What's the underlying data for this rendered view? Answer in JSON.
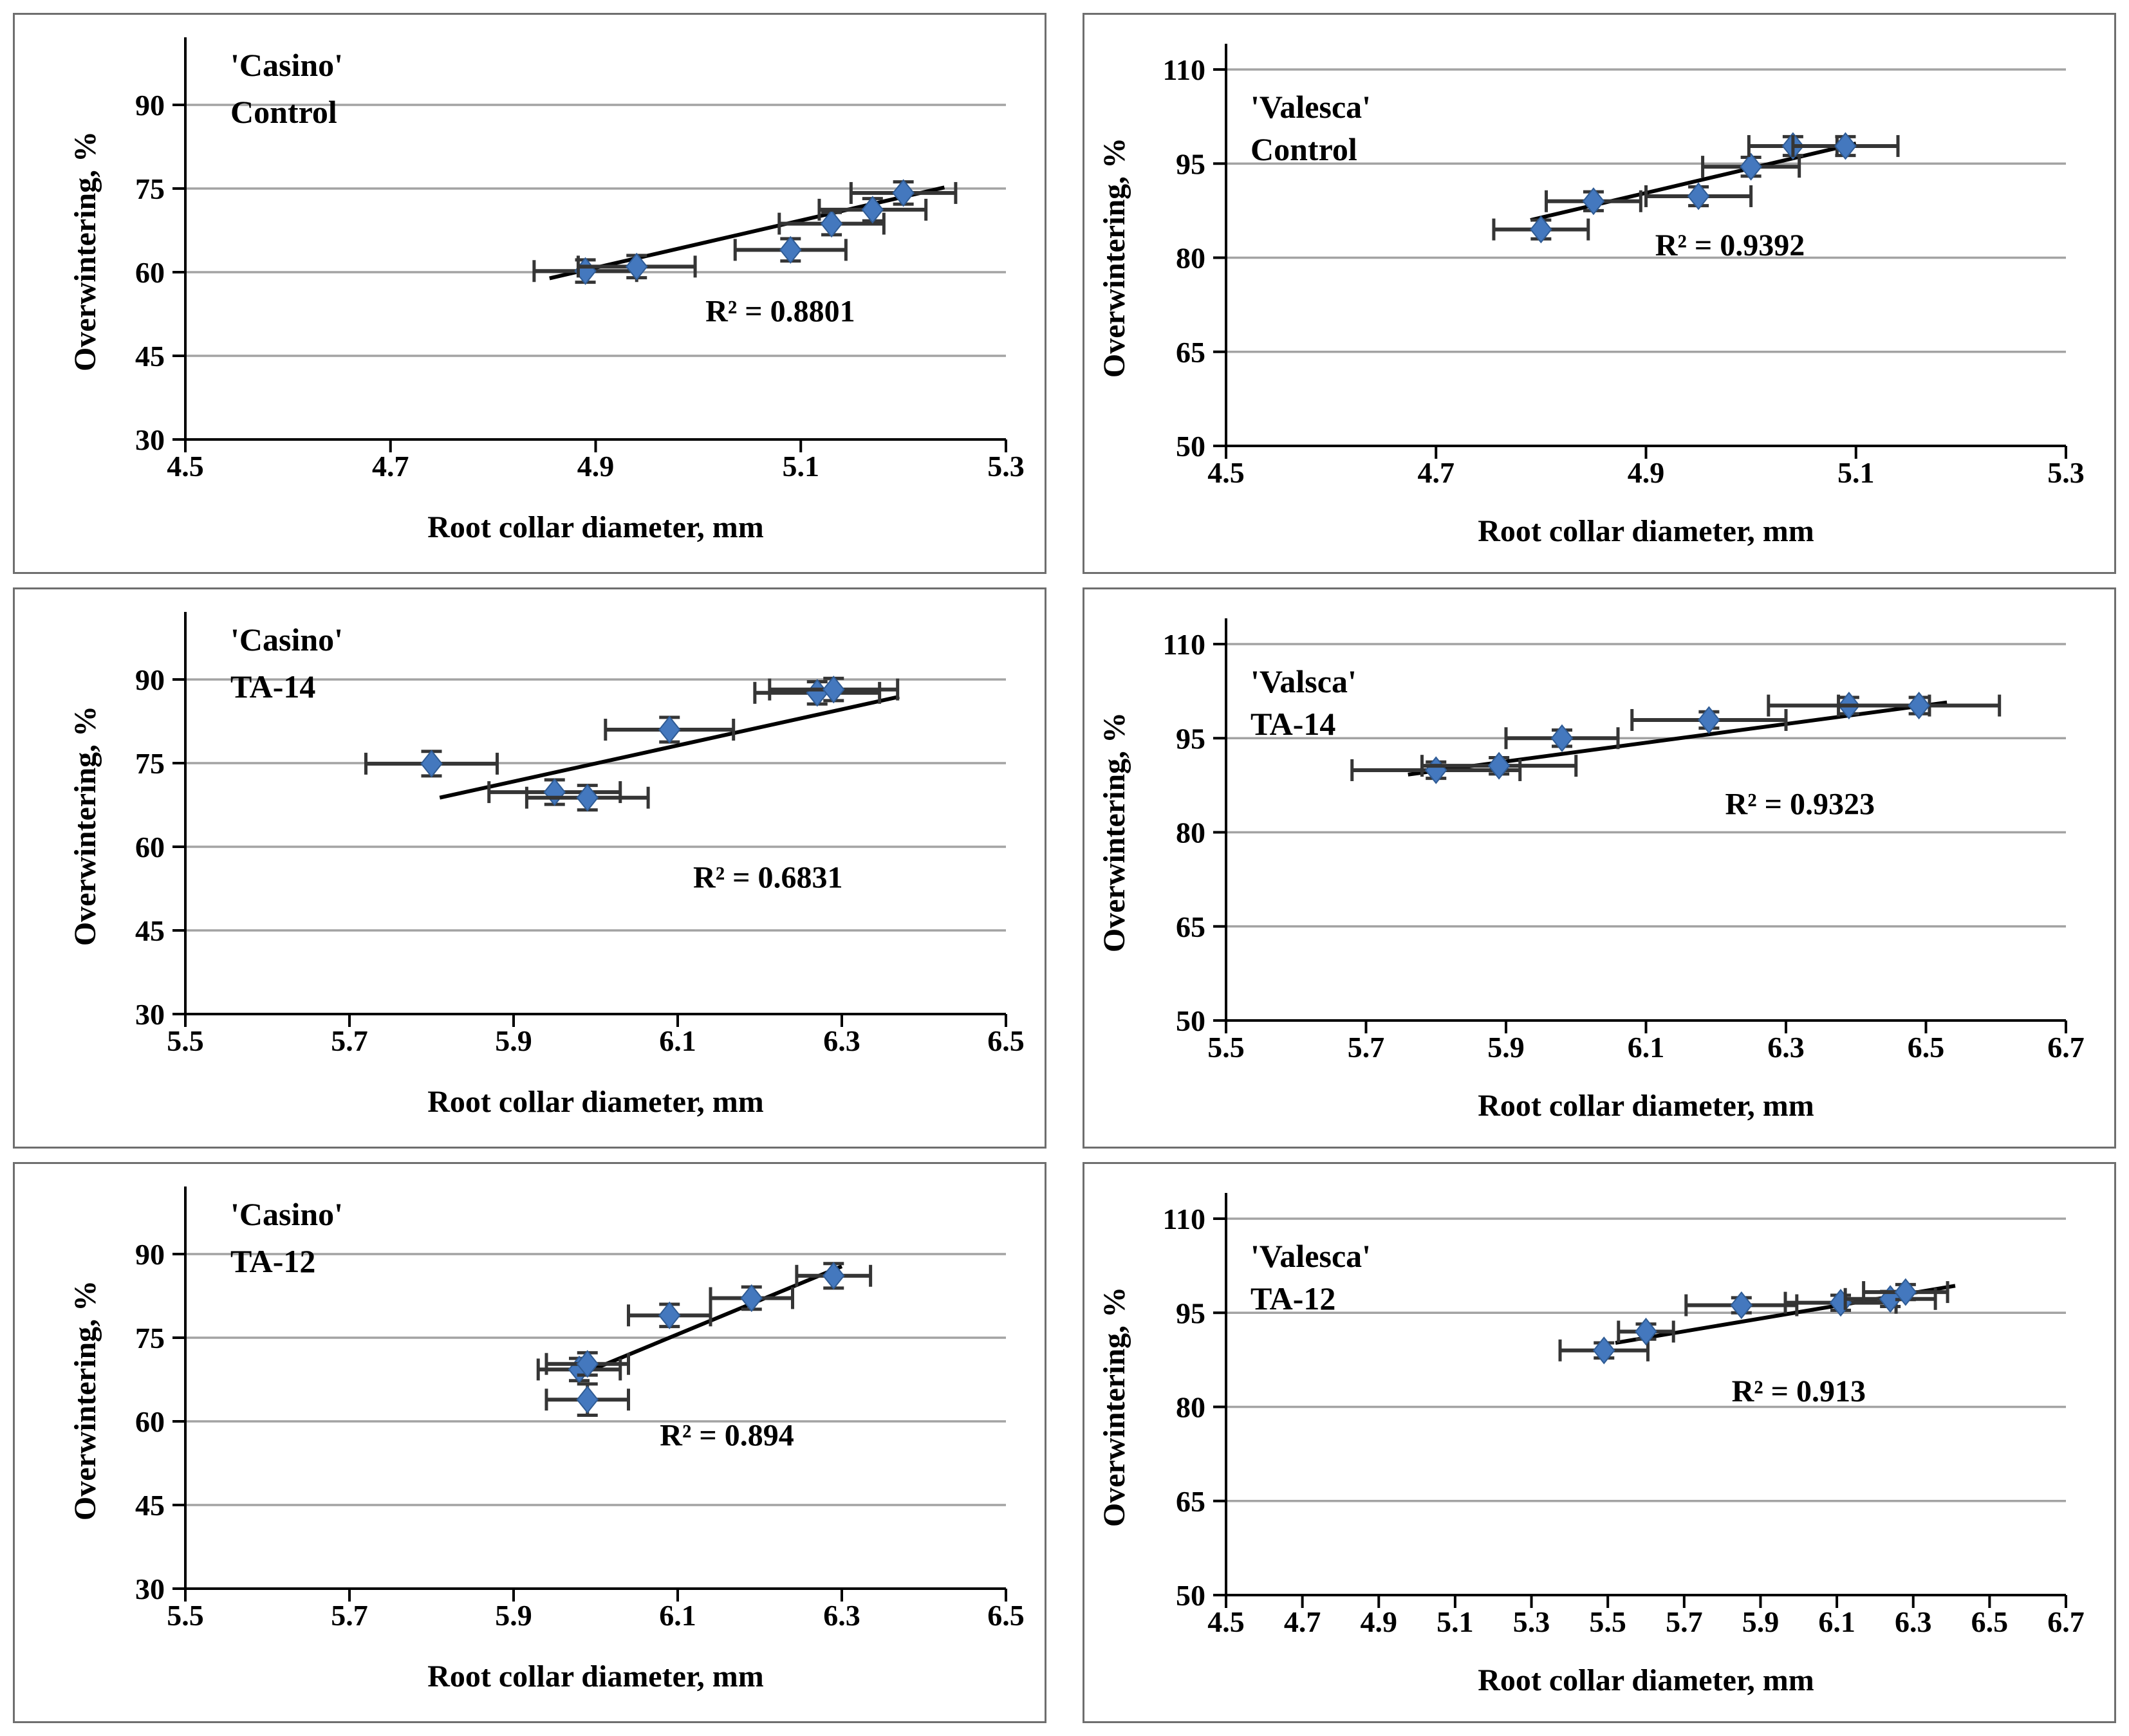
{
  "figure": {
    "description": "Six-panel scatter figure: overwintering percentage vs root collar diameter for two cultivars under three treatments",
    "xlabel": "Root collar diameter, mm",
    "ylabel": "Overwintering, %"
  },
  "colors": {
    "background": "#ffffff",
    "panel_border": "#6e6e6e",
    "grid": "#a3a3a3",
    "axis": "#000000",
    "error_bar": "#353535",
    "trend": "#000000",
    "marker_fill": "#4478be",
    "marker_edge": "#2f5b94",
    "text": "#000000"
  },
  "chart_data": [
    {
      "type": "scatter",
      "title_lines": [
        "'Casino'",
        "Control"
      ],
      "r2_label": "R² = 0.8801",
      "r2_pos": [
        5.08,
        53.0
      ],
      "xlabel": "Root collar diameter, mm",
      "ylabel": "Overwintering, %",
      "xlim": [
        4.5,
        5.3
      ],
      "ylim": [
        30,
        97.5
      ],
      "x_ticks": [
        4.5,
        4.7,
        4.9,
        5.1,
        5.3
      ],
      "y_ticks": [
        30,
        45,
        60,
        75,
        90
      ],
      "gridlines": [
        45,
        60,
        75,
        90
      ],
      "points": [
        {
          "x": 4.89,
          "y": 60.2,
          "xerr": 0.05,
          "yerr": 2.0
        },
        {
          "x": 4.94,
          "y": 61.0,
          "xerr": 0.057,
          "yerr": 2.0
        },
        {
          "x": 5.09,
          "y": 64.0,
          "xerr": 0.054,
          "yerr": 2.0
        },
        {
          "x": 5.13,
          "y": 68.7,
          "xerr": 0.051,
          "yerr": 2.0
        },
        {
          "x": 5.17,
          "y": 71.2,
          "xerr": 0.052,
          "yerr": 2.0
        },
        {
          "x": 5.2,
          "y": 74.2,
          "xerr": 0.051,
          "yerr": 2.0
        }
      ],
      "trendline": {
        "x1": 4.855,
        "y1": 58.9,
        "x2": 5.24,
        "y2": 75.2
      }
    },
    {
      "type": "scatter",
      "title_lines": [
        "'Valesca'",
        "Control"
      ],
      "r2_label": "R² = 0.9392",
      "r2_pos": [
        4.98,
        82.0
      ],
      "xlabel": "Root collar diameter, mm",
      "ylabel": "Overwintering, %",
      "xlim": [
        4.5,
        5.3
      ],
      "ylim": [
        50,
        110
      ],
      "x_ticks": [
        4.5,
        4.7,
        4.9,
        5.1,
        5.3
      ],
      "y_ticks": [
        50,
        65,
        80,
        95,
        110
      ],
      "gridlines": [
        65,
        80,
        95,
        110
      ],
      "points": [
        {
          "x": 4.8,
          "y": 84.5,
          "xerr": 0.045,
          "yerr": 1.5
        },
        {
          "x": 4.85,
          "y": 89.0,
          "xerr": 0.045,
          "yerr": 1.5
        },
        {
          "x": 4.95,
          "y": 89.8,
          "xerr": 0.05,
          "yerr": 1.5
        },
        {
          "x": 5.0,
          "y": 94.5,
          "xerr": 0.046,
          "yerr": 1.5
        },
        {
          "x": 5.04,
          "y": 97.8,
          "xerr": 0.042,
          "yerr": 1.5
        },
        {
          "x": 5.09,
          "y": 97.8,
          "xerr": 0.05,
          "yerr": 1.5
        }
      ],
      "trendline": {
        "x1": 4.79,
        "y1": 86.0,
        "x2": 5.1,
        "y2": 98.2
      }
    },
    {
      "type": "scatter",
      "title_lines": [
        "'Casino'",
        "TA-14"
      ],
      "r2_label": "R² = 0.6831",
      "r2_pos": [
        6.21,
        54.5
      ],
      "xlabel": "Root collar diameter, mm",
      "ylabel": "Overwintering, %",
      "xlim": [
        5.5,
        6.5
      ],
      "ylim": [
        30,
        97.5
      ],
      "x_ticks": [
        5.5,
        5.7,
        5.9,
        6.1,
        6.3,
        6.5
      ],
      "y_ticks": [
        30,
        45,
        60,
        75,
        90
      ],
      "gridlines": [
        45,
        60,
        75,
        90
      ],
      "points": [
        {
          "x": 5.8,
          "y": 74.9,
          "xerr": 0.08,
          "yerr": 2.2
        },
        {
          "x": 5.95,
          "y": 69.8,
          "xerr": 0.08,
          "yerr": 2.2
        },
        {
          "x": 5.99,
          "y": 68.8,
          "xerr": 0.074,
          "yerr": 2.2
        },
        {
          "x": 6.09,
          "y": 81.0,
          "xerr": 0.078,
          "yerr": 2.2
        },
        {
          "x": 6.27,
          "y": 87.6,
          "xerr": 0.076,
          "yerr": 2.0
        },
        {
          "x": 6.29,
          "y": 88.2,
          "xerr": 0.078,
          "yerr": 2.0
        }
      ],
      "trendline": {
        "x1": 5.81,
        "y1": 68.8,
        "x2": 6.37,
        "y2": 86.9
      }
    },
    {
      "type": "scatter",
      "title_lines": [
        "'Valsca'",
        "TA-14"
      ],
      "r2_label": "R² = 0.9323",
      "r2_pos": [
        6.32,
        84.5
      ],
      "xlabel": "Root collar diameter, mm",
      "ylabel": "Overwintering, %",
      "xlim": [
        5.5,
        6.7
      ],
      "ylim": [
        50,
        110
      ],
      "x_ticks": [
        5.5,
        5.7,
        5.9,
        6.1,
        6.3,
        6.5,
        6.7
      ],
      "y_ticks": [
        50,
        65,
        80,
        95,
        110
      ],
      "gridlines": [
        65,
        80,
        95,
        110
      ],
      "points": [
        {
          "x": 5.8,
          "y": 89.9,
          "xerr": 0.12,
          "yerr": 1.3
        },
        {
          "x": 5.89,
          "y": 90.6,
          "xerr": 0.11,
          "yerr": 1.3
        },
        {
          "x": 5.98,
          "y": 95.0,
          "xerr": 0.08,
          "yerr": 1.3
        },
        {
          "x": 6.19,
          "y": 97.9,
          "xerr": 0.11,
          "yerr": 1.3
        },
        {
          "x": 6.39,
          "y": 100.2,
          "xerr": 0.115,
          "yerr": 1.3
        },
        {
          "x": 6.49,
          "y": 100.2,
          "xerr": 0.115,
          "yerr": 1.3
        }
      ],
      "trendline": {
        "x1": 5.76,
        "y1": 89.2,
        "x2": 6.53,
        "y2": 100.7
      }
    },
    {
      "type": "scatter",
      "title_lines": [
        "'Casino'",
        "TA-12"
      ],
      "r2_label": "R² = 0.894",
      "r2_pos": [
        6.16,
        57.5
      ],
      "xlabel": "Root collar diameter, mm",
      "ylabel": "Overwintering, %",
      "xlim": [
        5.5,
        6.5
      ],
      "ylim": [
        30,
        97.5
      ],
      "x_ticks": [
        5.5,
        5.7,
        5.9,
        6.1,
        6.3,
        6.5
      ],
      "y_ticks": [
        30,
        45,
        60,
        75,
        90
      ],
      "gridlines": [
        45,
        60,
        75,
        90
      ],
      "points": [
        {
          "x": 5.98,
          "y": 69.3,
          "xerr": 0.05,
          "yerr": 2.0
        },
        {
          "x": 5.99,
          "y": 70.3,
          "xerr": 0.05,
          "yerr": 2.0
        },
        {
          "x": 5.99,
          "y": 63.9,
          "xerr": 0.05,
          "yerr": 2.8
        },
        {
          "x": 6.09,
          "y": 79.0,
          "xerr": 0.05,
          "yerr": 2.0
        },
        {
          "x": 6.19,
          "y": 82.1,
          "xerr": 0.05,
          "yerr": 2.0
        },
        {
          "x": 6.29,
          "y": 86.1,
          "xerr": 0.045,
          "yerr": 2.2
        }
      ],
      "trendline": {
        "x1": 5.975,
        "y1": 68.0,
        "x2": 6.3,
        "y2": 87.8
      }
    },
    {
      "type": "scatter",
      "title_lines": [
        "'Valesca'",
        "TA-12"
      ],
      "r2_label": "R² = 0.913",
      "r2_pos": [
        6.0,
        82.5
      ],
      "xlabel": "Root collar diameter, mm",
      "ylabel": "Overwintering, %",
      "xlim": [
        4.5,
        6.7
      ],
      "ylim": [
        50,
        110
      ],
      "x_ticks": [
        4.5,
        4.7,
        4.9,
        5.1,
        5.3,
        5.5,
        5.7,
        5.9,
        6.1,
        6.3,
        6.5,
        6.7
      ],
      "y_ticks": [
        50,
        65,
        80,
        95,
        110
      ],
      "gridlines": [
        65,
        80,
        95,
        110
      ],
      "points": [
        {
          "x": 5.49,
          "y": 89.0,
          "xerr": 0.115,
          "yerr": 1.2
        },
        {
          "x": 5.6,
          "y": 92.0,
          "xerr": 0.072,
          "yerr": 1.2
        },
        {
          "x": 5.85,
          "y": 96.2,
          "xerr": 0.145,
          "yerr": 1.2
        },
        {
          "x": 6.11,
          "y": 96.6,
          "xerr": 0.145,
          "yerr": 1.2
        },
        {
          "x": 6.24,
          "y": 97.2,
          "xerr": 0.118,
          "yerr": 1.2
        },
        {
          "x": 6.28,
          "y": 98.3,
          "xerr": 0.11,
          "yerr": 1.2
        }
      ],
      "trendline": {
        "x1": 5.52,
        "y1": 90.2,
        "x2": 6.41,
        "y2": 99.3
      }
    }
  ]
}
